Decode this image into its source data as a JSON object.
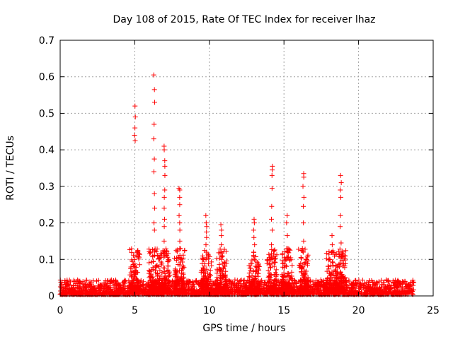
{
  "chart_data": {
    "type": "scatter",
    "title": "Day 108 of 2015, Rate Of TEC Index for receiver lhaz",
    "xlabel": "GPS time / hours",
    "ylabel": "ROTI / TECUs",
    "xlim": [
      0,
      25
    ],
    "ylim": [
      0,
      0.7
    ],
    "x_ticks": [
      "0",
      "5",
      "10",
      "15",
      "20",
      "25"
    ],
    "y_ticks": [
      "0",
      "0.1",
      "0.2",
      "0.3",
      "0.4",
      "0.5",
      "0.6",
      "0.7"
    ],
    "grid": true,
    "marker": "+",
    "series_color": "#ff0000",
    "baseline": {
      "x_range": [
        0,
        23.7
      ],
      "typical_max": 0.04
    },
    "peaks": [
      {
        "x": 5.0,
        "y": [
          0.52,
          0.49,
          0.46,
          0.44,
          0.425,
          0.11
        ]
      },
      {
        "x": 6.3,
        "y": [
          0.605,
          0.565,
          0.53,
          0.47,
          0.43,
          0.375,
          0.34,
          0.28,
          0.24,
          0.2,
          0.18
        ]
      },
      {
        "x": 7.0,
        "y": [
          0.41,
          0.4,
          0.37,
          0.355,
          0.33,
          0.29,
          0.27,
          0.24,
          0.21,
          0.19,
          0.15,
          0.12
        ]
      },
      {
        "x": 8.0,
        "y": [
          0.295,
          0.29,
          0.27,
          0.25,
          0.22,
          0.2,
          0.18,
          0.15,
          0.13
        ]
      },
      {
        "x": 9.8,
        "y": [
          0.22,
          0.2,
          0.19,
          0.175,
          0.16,
          0.14,
          0.12,
          0.1
        ]
      },
      {
        "x": 10.8,
        "y": [
          0.195,
          0.18,
          0.165,
          0.14,
          0.12,
          0.1
        ]
      },
      {
        "x": 13.0,
        "y": [
          0.21,
          0.2,
          0.18,
          0.16,
          0.14,
          0.12,
          0.1
        ]
      },
      {
        "x": 14.2,
        "y": [
          0.355,
          0.345,
          0.33,
          0.295,
          0.245,
          0.21,
          0.18,
          0.14
        ]
      },
      {
        "x": 15.2,
        "y": [
          0.22,
          0.2,
          0.165,
          0.12,
          0.1
        ]
      },
      {
        "x": 16.3,
        "y": [
          0.335,
          0.325,
          0.3,
          0.27,
          0.245,
          0.2,
          0.15,
          0.12
        ]
      },
      {
        "x": 18.8,
        "y": [
          0.33,
          0.31,
          0.29,
          0.27,
          0.22,
          0.19,
          0.145,
          0.09
        ]
      },
      {
        "x": 18.2,
        "y": [
          0.165,
          0.14,
          0.12
        ]
      }
    ]
  }
}
